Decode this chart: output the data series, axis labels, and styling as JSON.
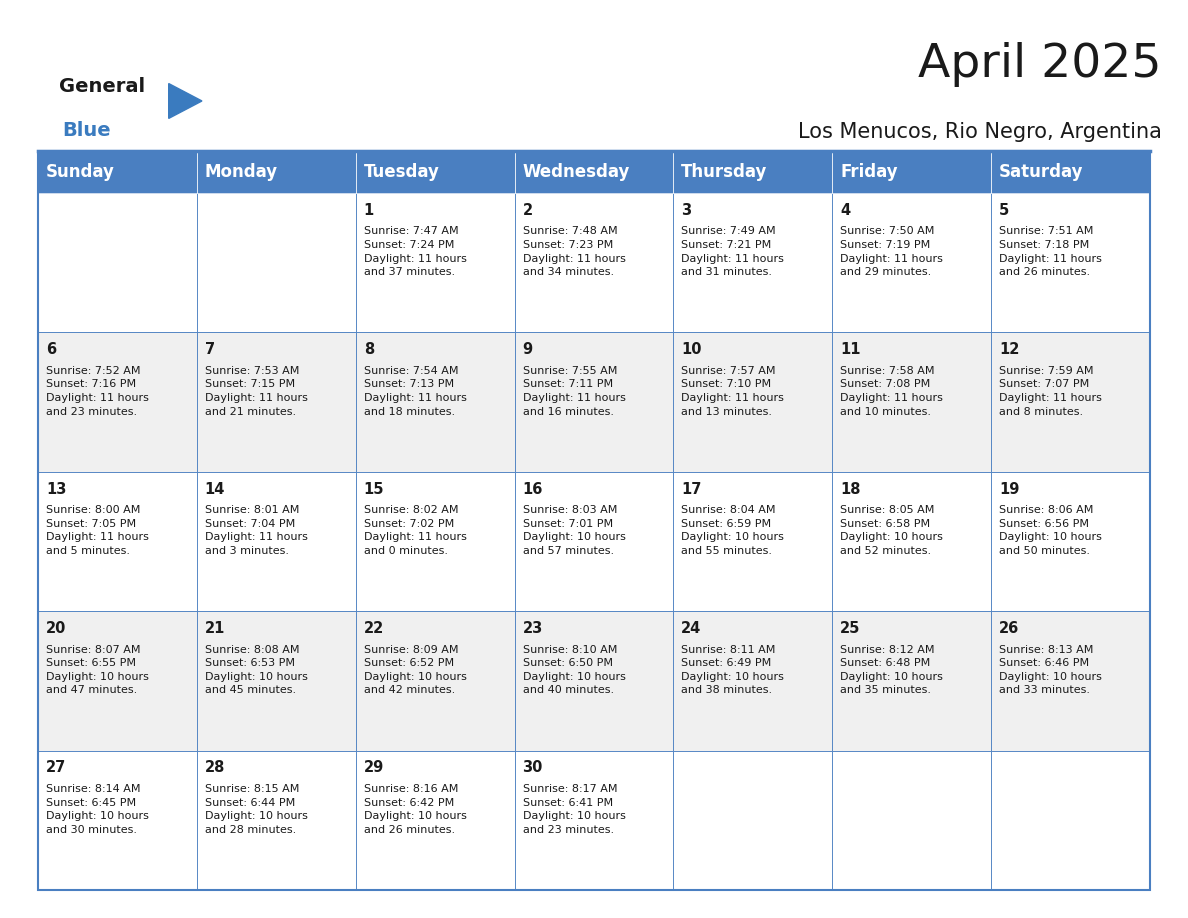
{
  "title": "April 2025",
  "subtitle": "Los Menucos, Rio Negro, Argentina",
  "header_color": "#4a7fc1",
  "header_text_color": "#FFFFFF",
  "row_colors": [
    "#FFFFFF",
    "#f0f0f0"
  ],
  "border_color": "#4a7fc1",
  "days_of_week": [
    "Sunday",
    "Monday",
    "Tuesday",
    "Wednesday",
    "Thursday",
    "Friday",
    "Saturday"
  ],
  "title_fontsize": 34,
  "subtitle_fontsize": 15,
  "day_header_fontsize": 12,
  "cell_num_fontsize": 10.5,
  "cell_text_fontsize": 8,
  "logo_general_fontsize": 14,
  "logo_blue_fontsize": 14,
  "weeks": [
    [
      {
        "day": null,
        "info": null
      },
      {
        "day": null,
        "info": null
      },
      {
        "day": 1,
        "info": "Sunrise: 7:47 AM\nSunset: 7:24 PM\nDaylight: 11 hours\nand 37 minutes."
      },
      {
        "day": 2,
        "info": "Sunrise: 7:48 AM\nSunset: 7:23 PM\nDaylight: 11 hours\nand 34 minutes."
      },
      {
        "day": 3,
        "info": "Sunrise: 7:49 AM\nSunset: 7:21 PM\nDaylight: 11 hours\nand 31 minutes."
      },
      {
        "day": 4,
        "info": "Sunrise: 7:50 AM\nSunset: 7:19 PM\nDaylight: 11 hours\nand 29 minutes."
      },
      {
        "day": 5,
        "info": "Sunrise: 7:51 AM\nSunset: 7:18 PM\nDaylight: 11 hours\nand 26 minutes."
      }
    ],
    [
      {
        "day": 6,
        "info": "Sunrise: 7:52 AM\nSunset: 7:16 PM\nDaylight: 11 hours\nand 23 minutes."
      },
      {
        "day": 7,
        "info": "Sunrise: 7:53 AM\nSunset: 7:15 PM\nDaylight: 11 hours\nand 21 minutes."
      },
      {
        "day": 8,
        "info": "Sunrise: 7:54 AM\nSunset: 7:13 PM\nDaylight: 11 hours\nand 18 minutes."
      },
      {
        "day": 9,
        "info": "Sunrise: 7:55 AM\nSunset: 7:11 PM\nDaylight: 11 hours\nand 16 minutes."
      },
      {
        "day": 10,
        "info": "Sunrise: 7:57 AM\nSunset: 7:10 PM\nDaylight: 11 hours\nand 13 minutes."
      },
      {
        "day": 11,
        "info": "Sunrise: 7:58 AM\nSunset: 7:08 PM\nDaylight: 11 hours\nand 10 minutes."
      },
      {
        "day": 12,
        "info": "Sunrise: 7:59 AM\nSunset: 7:07 PM\nDaylight: 11 hours\nand 8 minutes."
      }
    ],
    [
      {
        "day": 13,
        "info": "Sunrise: 8:00 AM\nSunset: 7:05 PM\nDaylight: 11 hours\nand 5 minutes."
      },
      {
        "day": 14,
        "info": "Sunrise: 8:01 AM\nSunset: 7:04 PM\nDaylight: 11 hours\nand 3 minutes."
      },
      {
        "day": 15,
        "info": "Sunrise: 8:02 AM\nSunset: 7:02 PM\nDaylight: 11 hours\nand 0 minutes."
      },
      {
        "day": 16,
        "info": "Sunrise: 8:03 AM\nSunset: 7:01 PM\nDaylight: 10 hours\nand 57 minutes."
      },
      {
        "day": 17,
        "info": "Sunrise: 8:04 AM\nSunset: 6:59 PM\nDaylight: 10 hours\nand 55 minutes."
      },
      {
        "day": 18,
        "info": "Sunrise: 8:05 AM\nSunset: 6:58 PM\nDaylight: 10 hours\nand 52 minutes."
      },
      {
        "day": 19,
        "info": "Sunrise: 8:06 AM\nSunset: 6:56 PM\nDaylight: 10 hours\nand 50 minutes."
      }
    ],
    [
      {
        "day": 20,
        "info": "Sunrise: 8:07 AM\nSunset: 6:55 PM\nDaylight: 10 hours\nand 47 minutes."
      },
      {
        "day": 21,
        "info": "Sunrise: 8:08 AM\nSunset: 6:53 PM\nDaylight: 10 hours\nand 45 minutes."
      },
      {
        "day": 22,
        "info": "Sunrise: 8:09 AM\nSunset: 6:52 PM\nDaylight: 10 hours\nand 42 minutes."
      },
      {
        "day": 23,
        "info": "Sunrise: 8:10 AM\nSunset: 6:50 PM\nDaylight: 10 hours\nand 40 minutes."
      },
      {
        "day": 24,
        "info": "Sunrise: 8:11 AM\nSunset: 6:49 PM\nDaylight: 10 hours\nand 38 minutes."
      },
      {
        "day": 25,
        "info": "Sunrise: 8:12 AM\nSunset: 6:48 PM\nDaylight: 10 hours\nand 35 minutes."
      },
      {
        "day": 26,
        "info": "Sunrise: 8:13 AM\nSunset: 6:46 PM\nDaylight: 10 hours\nand 33 minutes."
      }
    ],
    [
      {
        "day": 27,
        "info": "Sunrise: 8:14 AM\nSunset: 6:45 PM\nDaylight: 10 hours\nand 30 minutes."
      },
      {
        "day": 28,
        "info": "Sunrise: 8:15 AM\nSunset: 6:44 PM\nDaylight: 10 hours\nand 28 minutes."
      },
      {
        "day": 29,
        "info": "Sunrise: 8:16 AM\nSunset: 6:42 PM\nDaylight: 10 hours\nand 26 minutes."
      },
      {
        "day": 30,
        "info": "Sunrise: 8:17 AM\nSunset: 6:41 PM\nDaylight: 10 hours\nand 23 minutes."
      },
      {
        "day": null,
        "info": null
      },
      {
        "day": null,
        "info": null
      },
      {
        "day": null,
        "info": null
      }
    ]
  ]
}
